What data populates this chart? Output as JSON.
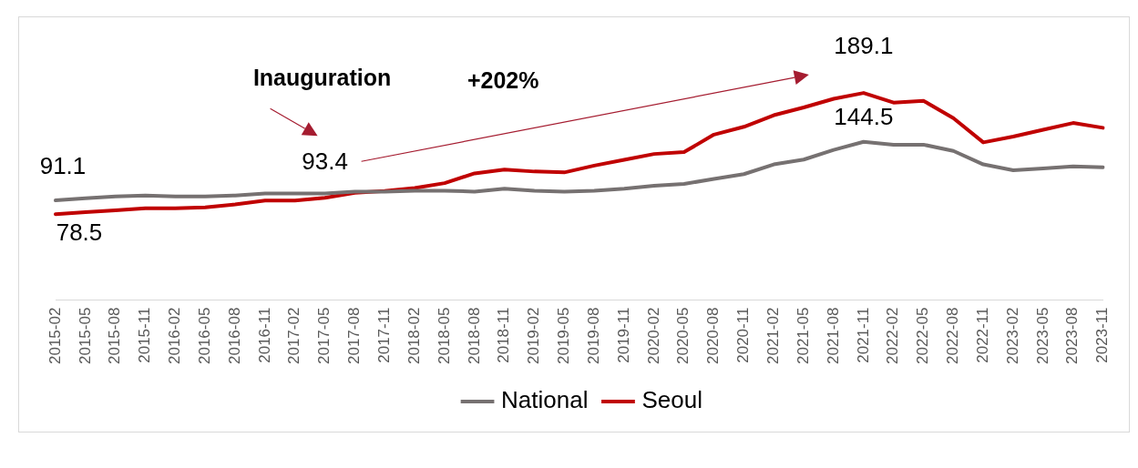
{
  "chart_data": {
    "type": "line",
    "categories": [
      "2015-02",
      "2015-05",
      "2015-08",
      "2015-11",
      "2016-02",
      "2016-05",
      "2016-08",
      "2016-11",
      "2017-02",
      "2017-05",
      "2017-08",
      "2017-11",
      "2018-02",
      "2018-05",
      "2018-08",
      "2018-11",
      "2019-02",
      "2019-05",
      "2019-08",
      "2019-11",
      "2020-02",
      "2020-05",
      "2020-08",
      "2020-11",
      "2021-02",
      "2021-05",
      "2021-08",
      "2021-11",
      "2022-02",
      "2022-05",
      "2022-08",
      "2022-11",
      "2023-02",
      "2023-05",
      "2023-08",
      "2023-11"
    ],
    "series": [
      {
        "name": "National",
        "color": "#767171",
        "values": [
          91.1,
          92.9,
          94.6,
          95.5,
          94.6,
          94.6,
          95.5,
          97.3,
          97.3,
          97.3,
          99.1,
          99.1,
          99.9,
          99.9,
          99.1,
          101.7,
          99.9,
          99.1,
          99.9,
          101.7,
          104.4,
          106.1,
          110.6,
          115.0,
          123.9,
          128.3,
          137.1,
          144.5,
          141.9,
          141.9,
          136.2,
          123.9,
          118.6,
          120.3,
          122.1,
          121.2
        ],
        "value_labels": [
          "91.1",
          null,
          null,
          null,
          null,
          null,
          null,
          null,
          null,
          null,
          null,
          null,
          null,
          null,
          null,
          null,
          null,
          null,
          null,
          null,
          null,
          null,
          null,
          null,
          null,
          null,
          null,
          "144.5",
          null,
          null,
          null,
          null,
          null,
          null,
          null,
          null
        ]
      },
      {
        "name": "Seoul",
        "color": "#c00000",
        "values": [
          78.5,
          80.3,
          82.0,
          83.8,
          83.8,
          84.7,
          87.4,
          90.9,
          90.9,
          93.4,
          98.0,
          99.7,
          102.4,
          106.8,
          115.7,
          119.2,
          117.4,
          116.6,
          122.8,
          128.1,
          133.4,
          135.1,
          151.1,
          158.2,
          168.8,
          175.9,
          183.8,
          189.1,
          180.3,
          182.0,
          166.1,
          144.0,
          149.3,
          155.5,
          161.7,
          157.3
        ],
        "value_labels": [
          "78.5",
          null,
          null,
          null,
          null,
          null,
          null,
          null,
          null,
          "93.4",
          null,
          null,
          null,
          null,
          null,
          null,
          null,
          null,
          null,
          null,
          null,
          null,
          null,
          null,
          null,
          null,
          null,
          "189.1",
          null,
          null,
          null,
          null,
          null,
          null,
          null,
          null
        ]
      }
    ],
    "annotations": [
      "Inauguration",
      "+202%"
    ],
    "tick_labels": "x",
    "grid": false,
    "legend": "bottom",
    "marker": "none",
    "line_style": "solid"
  }
}
